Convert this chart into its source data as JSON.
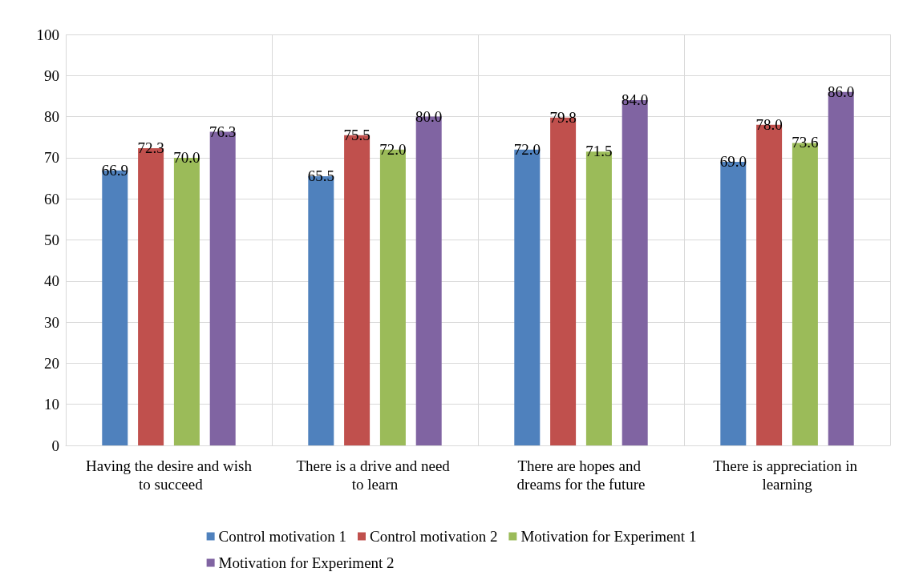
{
  "chart_data": {
    "type": "bar",
    "categories": [
      "Having the desire and wish to succeed",
      "There is a drive and need to learn",
      "There are hopes and dreams for the future",
      "There is appreciation in learning"
    ],
    "series": [
      {
        "name": "Control motivation 1",
        "color": "#4f81bd",
        "values": [
          66.9,
          65.5,
          72.0,
          69.0
        ],
        "value_labels": [
          "66.9",
          "65.5",
          "72.0",
          "69.0"
        ]
      },
      {
        "name": "Control motivation 2",
        "color": "#c0504d",
        "values": [
          72.3,
          75.5,
          79.8,
          78.0
        ],
        "value_labels": [
          "72.3",
          "75.5",
          "79.8",
          "78.0"
        ]
      },
      {
        "name": "Motivation for Experiment 1",
        "color": "#9bbb59",
        "values": [
          70.0,
          72.0,
          71.5,
          73.6
        ],
        "value_labels": [
          "70.0",
          "72.0",
          "71.5",
          "73.6"
        ]
      },
      {
        "name": "Motivation for Experiment 2",
        "color": "#8064a2",
        "values": [
          76.3,
          80.0,
          84.0,
          86.0
        ],
        "value_labels": [
          "76.3",
          "80.0",
          "84.0",
          "86.0"
        ]
      }
    ],
    "ylim": [
      0,
      100
    ],
    "yticks": [
      0,
      10,
      20,
      30,
      40,
      50,
      60,
      70,
      80,
      90,
      100
    ],
    "grid": true,
    "legend": "bottom"
  }
}
